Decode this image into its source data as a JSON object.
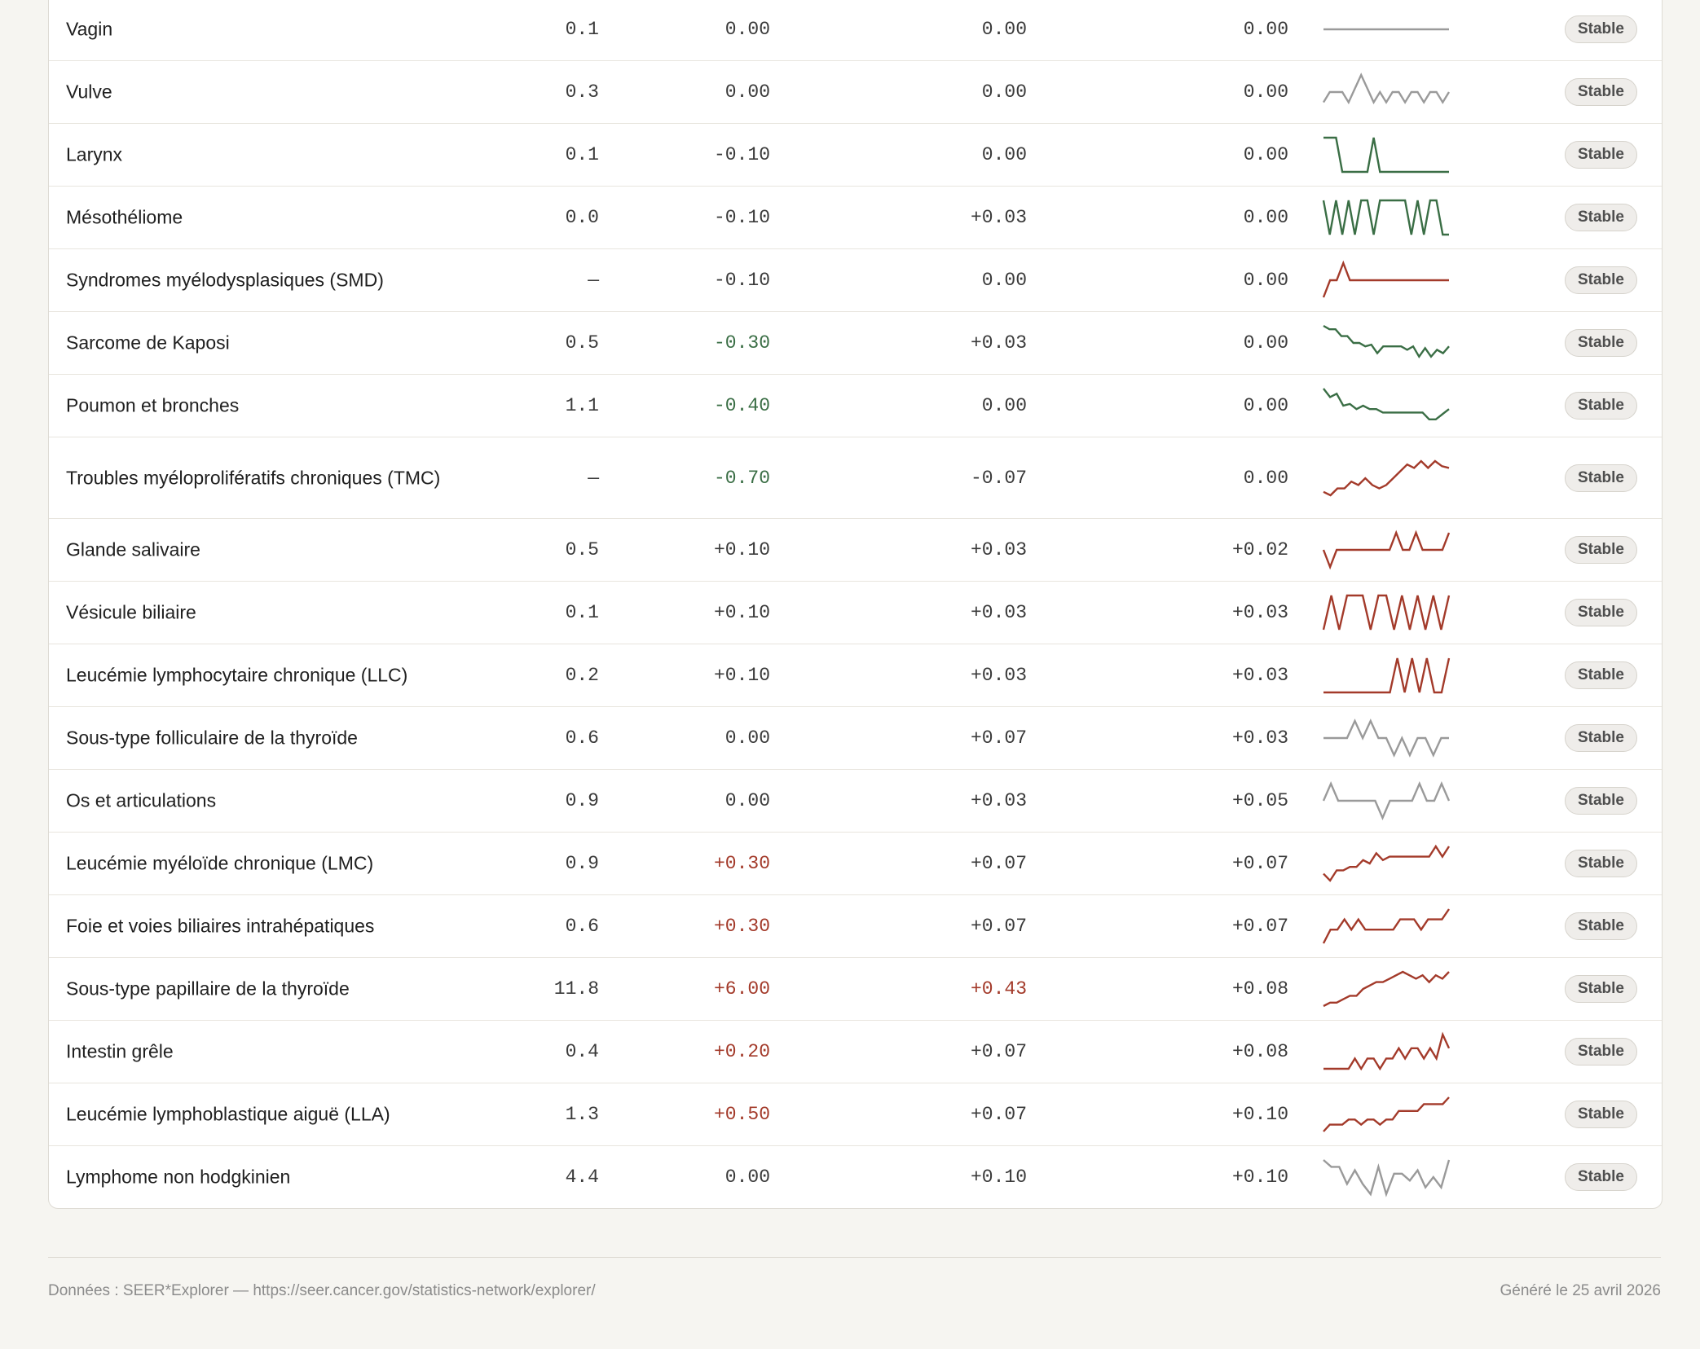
{
  "rows": [
    {
      "name": "Vagin",
      "rate": "0.1",
      "apc1": "0.00",
      "apc1_tone": "neutral",
      "apc2": "0.00",
      "apc2_tone": "neutral",
      "apc3": "0.00",
      "status": "Stable",
      "spark_color": "#9a9a9a",
      "spark": [
        0.5,
        0.5,
        0.5,
        0.5,
        0.5,
        0.5,
        0.5,
        0.5,
        0.5,
        0.5,
        0.5,
        0.5,
        0.5,
        0.5,
        0.5,
        0.5,
        0.5,
        0.5,
        0.5,
        0.5,
        0.5
      ]
    },
    {
      "name": "Vulve",
      "rate": "0.3",
      "apc1": "0.00",
      "apc1_tone": "neutral",
      "apc2": "0.00",
      "apc2_tone": "neutral",
      "apc3": "0.00",
      "status": "Stable",
      "spark_color": "#9a9a9a",
      "spark": [
        0.2,
        0.5,
        0.5,
        0.5,
        0.2,
        0.6,
        1.0,
        0.6,
        0.2,
        0.5,
        0.2,
        0.5,
        0.5,
        0.2,
        0.5,
        0.5,
        0.2,
        0.5,
        0.5,
        0.2,
        0.5
      ]
    },
    {
      "name": "Larynx",
      "rate": "0.1",
      "apc1": "-0.10",
      "apc1_tone": "neutral",
      "apc2": "0.00",
      "apc2_tone": "neutral",
      "apc3": "0.00",
      "status": "Stable",
      "spark_color": "#3a6e45",
      "spark": [
        1.0,
        1.0,
        1.0,
        0.0,
        0.0,
        0.0,
        0.0,
        0.0,
        1.0,
        0.0,
        0.0,
        0.0,
        0.0,
        0.0,
        0.0,
        0.0,
        0.0,
        0.0,
        0.0,
        0.0,
        0.0
      ]
    },
    {
      "name": "Mésothéliome",
      "rate": "0.0",
      "apc1": "-0.10",
      "apc1_tone": "neutral",
      "apc2": "+0.03",
      "apc2_tone": "neutral",
      "apc3": "0.00",
      "status": "Stable",
      "spark_color": "#3a6e45",
      "spark": [
        1.0,
        0.0,
        1.0,
        0.0,
        1.0,
        0.0,
        1.0,
        1.0,
        0.0,
        1.0,
        1.0,
        1.0,
        1.0,
        1.0,
        0.0,
        1.0,
        0.0,
        1.0,
        1.0,
        0.0,
        0.0
      ]
    },
    {
      "name": "Syndromes myélodysplasiques (SMD)",
      "rate": "—",
      "apc1": "-0.10",
      "apc1_tone": "neutral",
      "apc2": "0.00",
      "apc2_tone": "neutral",
      "apc3": "0.00",
      "status": "Stable",
      "spark_color": "#a33a2a",
      "spark": [
        0.0,
        0.5,
        0.5,
        1.0,
        0.5,
        0.5,
        0.5,
        0.5,
        0.5,
        0.5,
        0.5,
        0.5,
        0.5,
        0.5,
        0.5,
        0.5,
        0.5,
        0.5,
        0.5,
        0.5
      ]
    },
    {
      "name": "Sarcome de Kaposi",
      "rate": "0.5",
      "apc1": "-0.30",
      "apc1_tone": "neg",
      "apc2": "+0.03",
      "apc2_tone": "neutral",
      "apc3": "0.00",
      "status": "Stable",
      "spark_color": "#3a6e45",
      "spark": [
        1.0,
        0.9,
        0.9,
        0.7,
        0.7,
        0.5,
        0.5,
        0.4,
        0.45,
        0.2,
        0.4,
        0.4,
        0.4,
        0.4,
        0.3,
        0.4,
        0.1,
        0.35,
        0.1,
        0.3,
        0.2,
        0.4
      ]
    },
    {
      "name": "Poumon et bronches",
      "rate": "1.1",
      "apc1": "-0.40",
      "apc1_tone": "neg",
      "apc2": "0.00",
      "apc2_tone": "neutral",
      "apc3": "0.00",
      "status": "Stable",
      "spark_color": "#3a6e45",
      "spark": [
        1.0,
        0.75,
        0.85,
        0.5,
        0.55,
        0.4,
        0.5,
        0.4,
        0.4,
        0.3,
        0.3,
        0.3,
        0.3,
        0.3,
        0.3,
        0.3,
        0.1,
        0.1,
        0.25,
        0.4
      ]
    },
    {
      "name": "Troubles myéloprolifératifs chroniques (TMC)",
      "rate": "—",
      "apc1": "-0.70",
      "apc1_tone": "neg",
      "apc2": "-0.07",
      "apc2_tone": "neutral",
      "apc3": "0.00",
      "status": "Stable",
      "spark_color": "#a33a2a",
      "spark": [
        0.1,
        0.0,
        0.2,
        0.2,
        0.4,
        0.3,
        0.5,
        0.3,
        0.2,
        0.3,
        0.5,
        0.7,
        0.9,
        0.8,
        1.0,
        0.8,
        1.0,
        0.85,
        0.8
      ]
    },
    {
      "name": "Glande salivaire",
      "rate": "0.5",
      "apc1": "+0.10",
      "apc1_tone": "neutral",
      "apc2": "+0.03",
      "apc2_tone": "neutral",
      "apc3": "+0.02",
      "status": "Stable",
      "spark_color": "#a33a2a",
      "spark": [
        0.5,
        0.0,
        0.5,
        0.5,
        0.5,
        0.5,
        0.5,
        0.5,
        0.5,
        0.5,
        0.5,
        1.0,
        0.5,
        0.5,
        1.0,
        0.5,
        0.5,
        0.5,
        0.5,
        1.0
      ]
    },
    {
      "name": "Vésicule biliaire",
      "rate": "0.1",
      "apc1": "+0.10",
      "apc1_tone": "neutral",
      "apc2": "+0.03",
      "apc2_tone": "neutral",
      "apc3": "+0.03",
      "status": "Stable",
      "spark_color": "#a33a2a",
      "spark": [
        0.0,
        1.0,
        0.0,
        1.0,
        1.0,
        1.0,
        0.0,
        1.0,
        1.0,
        0.0,
        1.0,
        0.0,
        1.0,
        0.0,
        1.0,
        0.0,
        1.0
      ]
    },
    {
      "name": "Leucémie lymphocytaire chronique (LLC)",
      "rate": "0.2",
      "apc1": "+0.10",
      "apc1_tone": "neutral",
      "apc2": "+0.03",
      "apc2_tone": "neutral",
      "apc3": "+0.03",
      "status": "Stable",
      "spark_color": "#a33a2a",
      "spark": [
        0.0,
        0.0,
        0.0,
        0.0,
        0.0,
        0.0,
        0.0,
        0.0,
        0.0,
        0.0,
        1.0,
        0.0,
        1.0,
        0.0,
        1.0,
        0.0,
        0.0,
        1.0
      ]
    },
    {
      "name": "Sous-type folliculaire de la thyroïde",
      "rate": "0.6",
      "apc1": "0.00",
      "apc1_tone": "neutral",
      "apc2": "+0.07",
      "apc2_tone": "neutral",
      "apc3": "+0.03",
      "status": "Stable",
      "spark_color": "#9a9a9a",
      "spark": [
        0.5,
        0.5,
        0.5,
        0.5,
        1.0,
        0.5,
        1.0,
        0.5,
        0.5,
        0.0,
        0.5,
        0.0,
        0.5,
        0.5,
        0.0,
        0.5,
        0.5
      ]
    },
    {
      "name": "Os et articulations",
      "rate": "0.9",
      "apc1": "0.00",
      "apc1_tone": "neutral",
      "apc2": "+0.03",
      "apc2_tone": "neutral",
      "apc3": "+0.05",
      "status": "Stable",
      "spark_color": "#9a9a9a",
      "spark": [
        0.5,
        1.0,
        0.5,
        0.5,
        0.5,
        0.5,
        0.5,
        0.5,
        0.0,
        0.5,
        0.5,
        0.5,
        0.5,
        1.0,
        0.5,
        0.5,
        1.0,
        0.5
      ]
    },
    {
      "name": "Leucémie myéloïde chronique (LMC)",
      "rate": "0.9",
      "apc1": "+0.30",
      "apc1_tone": "pos",
      "apc2": "+0.07",
      "apc2_tone": "neutral",
      "apc3": "+0.07",
      "status": "Stable",
      "spark_color": "#a33a2a",
      "spark": [
        0.2,
        0.0,
        0.3,
        0.3,
        0.4,
        0.4,
        0.6,
        0.5,
        0.8,
        0.6,
        0.7,
        0.7,
        0.7,
        0.7,
        0.7,
        0.7,
        0.7,
        1.0,
        0.7,
        1.0
      ]
    },
    {
      "name": "Foie et voies biliaires intrahépatiques",
      "rate": "0.6",
      "apc1": "+0.30",
      "apc1_tone": "pos",
      "apc2": "+0.07",
      "apc2_tone": "neutral",
      "apc3": "+0.07",
      "status": "Stable",
      "spark_color": "#a33a2a",
      "spark": [
        0.0,
        0.4,
        0.4,
        0.7,
        0.4,
        0.7,
        0.4,
        0.4,
        0.4,
        0.4,
        0.4,
        0.7,
        0.7,
        0.7,
        0.4,
        0.7,
        0.7,
        0.7,
        1.0
      ]
    },
    {
      "name": "Sous-type papillaire de la thyroïde",
      "rate": "11.8",
      "apc1": "+6.00",
      "apc1_tone": "pos",
      "apc2": "+0.43",
      "apc2_tone": "pos",
      "apc3": "+0.08",
      "status": "Stable",
      "spark_color": "#a33a2a",
      "spark": [
        0.0,
        0.1,
        0.1,
        0.2,
        0.3,
        0.3,
        0.5,
        0.6,
        0.7,
        0.7,
        0.8,
        0.9,
        1.0,
        0.9,
        0.8,
        0.9,
        0.7,
        0.9,
        0.8,
        1.0
      ]
    },
    {
      "name": "Intestin grêle",
      "rate": "0.4",
      "apc1": "+0.20",
      "apc1_tone": "pos",
      "apc2": "+0.07",
      "apc2_tone": "neutral",
      "apc3": "+0.08",
      "status": "Stable",
      "spark_color": "#a33a2a",
      "spark": [
        0.0,
        0.0,
        0.0,
        0.0,
        0.0,
        0.3,
        0.0,
        0.3,
        0.3,
        0.0,
        0.3,
        0.3,
        0.6,
        0.3,
        0.6,
        0.6,
        0.3,
        0.6,
        0.3,
        1.0,
        0.6
      ]
    },
    {
      "name": "Leucémie lymphoblastique aiguë (LLA)",
      "rate": "1.3",
      "apc1": "+0.50",
      "apc1_tone": "pos",
      "apc2": "+0.07",
      "apc2_tone": "neutral",
      "apc3": "+0.10",
      "status": "Stable",
      "spark_color": "#a33a2a",
      "spark": [
        0.0,
        0.2,
        0.2,
        0.2,
        0.35,
        0.35,
        0.2,
        0.35,
        0.35,
        0.2,
        0.35,
        0.35,
        0.6,
        0.6,
        0.6,
        0.6,
        0.8,
        0.8,
        0.8,
        0.8,
        1.0
      ]
    },
    {
      "name": "Lymphome non hodgkinien",
      "rate": "4.4",
      "apc1": "0.00",
      "apc1_tone": "neutral",
      "apc2": "+0.10",
      "apc2_tone": "neutral",
      "apc3": "+0.10",
      "status": "Stable",
      "spark_color": "#9a9a9a",
      "spark": [
        1.0,
        0.8,
        0.8,
        0.3,
        0.7,
        0.3,
        0.0,
        0.8,
        0.0,
        0.6,
        0.6,
        0.4,
        0.7,
        0.2,
        0.5,
        0.2,
        1.0
      ]
    }
  ],
  "footer": {
    "source": "Données : SEER*Explorer — https://seer.cancer.gov/statistics-network/explorer/",
    "generated": "Généré le 25 avril 2026"
  }
}
